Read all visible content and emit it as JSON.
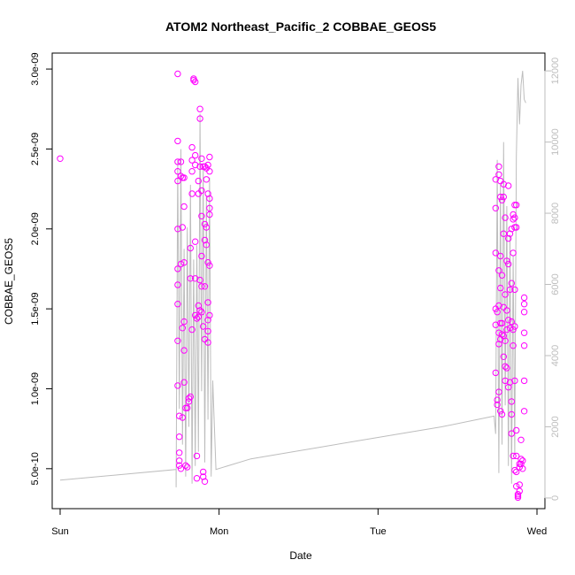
{
  "chart_data": {
    "type": "scatter",
    "title": "ATOM2 Northeast_Pacific_2 COBBAE_GEOS5",
    "xlabel": "Date",
    "ylabel": "COBBAE_GEOS5",
    "x_ticks": [
      "Sun",
      "Mon",
      "Tue",
      "Wed"
    ],
    "xlim_days": [
      -0.05,
      3.05
    ],
    "ylim": [
      2.5e-10,
      3.1e-09
    ],
    "y_ticks": [
      5e-10,
      1e-09,
      1.5e-09,
      2e-09,
      2.5e-09,
      3e-09
    ],
    "y_tick_labels": [
      "5.0e-10",
      "1.0e-09",
      "1.5e-09",
      "2.0e-09",
      "2.5e-09",
      "3.0e-09"
    ],
    "y2lim": [
      -300,
      12500
    ],
    "y2_ticks": [
      0,
      2000,
      4000,
      6000,
      8000,
      10000,
      12000
    ],
    "y2_tick_labels": [
      "0",
      "2000",
      "4000",
      "6000",
      "8000",
      "10000",
      "12000"
    ],
    "grid": false,
    "series": [
      {
        "marker": "open-circle",
        "color": "#ff00ff",
        "points": [
          {
            "x": 0.0,
            "y": 2.44e-09
          },
          {
            "x": 0.74,
            "y": 2.97e-09
          },
          {
            "x": 0.74,
            "y": 2.55e-09
          },
          {
            "x": 0.74,
            "y": 2.42e-09
          },
          {
            "x": 0.74,
            "y": 2.36e-09
          },
          {
            "x": 0.74,
            "y": 2.3e-09
          },
          {
            "x": 0.74,
            "y": 2e-09
          },
          {
            "x": 0.74,
            "y": 1.75e-09
          },
          {
            "x": 0.74,
            "y": 1.65e-09
          },
          {
            "x": 0.74,
            "y": 1.53e-09
          },
          {
            "x": 0.74,
            "y": 1.3e-09
          },
          {
            "x": 0.74,
            "y": 1.02e-09
          },
          {
            "x": 0.75,
            "y": 8.3e-10
          },
          {
            "x": 0.75,
            "y": 7e-10
          },
          {
            "x": 0.75,
            "y": 6e-10
          },
          {
            "x": 0.75,
            "y": 5.5e-10
          },
          {
            "x": 0.75,
            "y": 5.2e-10
          },
          {
            "x": 0.76,
            "y": 5e-10
          },
          {
            "x": 0.76,
            "y": 2.33e-09
          },
          {
            "x": 0.76,
            "y": 2.42e-09
          },
          {
            "x": 0.76,
            "y": 1.78e-09
          },
          {
            "x": 0.77,
            "y": 2.32e-09
          },
          {
            "x": 0.77,
            "y": 2.01e-09
          },
          {
            "x": 0.77,
            "y": 1.38e-09
          },
          {
            "x": 0.77,
            "y": 8.2e-10
          },
          {
            "x": 0.78,
            "y": 2.32e-09
          },
          {
            "x": 0.78,
            "y": 2.14e-09
          },
          {
            "x": 0.78,
            "y": 1.79e-09
          },
          {
            "x": 0.78,
            "y": 1.42e-09
          },
          {
            "x": 0.78,
            "y": 1.24e-09
          },
          {
            "x": 0.78,
            "y": 1.04e-09
          },
          {
            "x": 0.79,
            "y": 8.8e-10
          },
          {
            "x": 0.79,
            "y": 5.2e-10
          },
          {
            "x": 0.8,
            "y": 8.8e-10
          },
          {
            "x": 0.8,
            "y": 5.1e-10
          },
          {
            "x": 0.81,
            "y": 9.2e-10
          },
          {
            "x": 0.81,
            "y": 9.4e-10
          },
          {
            "x": 0.82,
            "y": 9.5e-10
          },
          {
            "x": 0.82,
            "y": 1.88e-09
          },
          {
            "x": 0.82,
            "y": 1.69e-09
          },
          {
            "x": 0.83,
            "y": 2.22e-09
          },
          {
            "x": 0.83,
            "y": 2.36e-09
          },
          {
            "x": 0.83,
            "y": 2.43e-09
          },
          {
            "x": 0.83,
            "y": 2.51e-09
          },
          {
            "x": 0.83,
            "y": 1.37e-09
          },
          {
            "x": 0.84,
            "y": 2.94e-09
          },
          {
            "x": 0.84,
            "y": 2.93e-09
          },
          {
            "x": 0.85,
            "y": 2.92e-09
          },
          {
            "x": 0.85,
            "y": 2.46e-09
          },
          {
            "x": 0.85,
            "y": 2.4e-09
          },
          {
            "x": 0.85,
            "y": 1.92e-09
          },
          {
            "x": 0.85,
            "y": 1.69e-09
          },
          {
            "x": 0.85,
            "y": 1.46e-09
          },
          {
            "x": 0.86,
            "y": 1.44e-09
          },
          {
            "x": 0.86,
            "y": 5.8e-10
          },
          {
            "x": 0.86,
            "y": 4.4e-10
          },
          {
            "x": 0.87,
            "y": 2.3e-09
          },
          {
            "x": 0.87,
            "y": 2.22e-09
          },
          {
            "x": 0.87,
            "y": 1.52e-09
          },
          {
            "x": 0.87,
            "y": 1.45e-09
          },
          {
            "x": 0.88,
            "y": 2.75e-09
          },
          {
            "x": 0.88,
            "y": 2.69e-09
          },
          {
            "x": 0.88,
            "y": 2.39e-09
          },
          {
            "x": 0.88,
            "y": 1.68e-09
          },
          {
            "x": 0.88,
            "y": 1.49e-09
          },
          {
            "x": 0.89,
            "y": 2.44e-09
          },
          {
            "x": 0.89,
            "y": 2.24e-09
          },
          {
            "x": 0.89,
            "y": 2.08e-09
          },
          {
            "x": 0.89,
            "y": 1.83e-09
          },
          {
            "x": 0.89,
            "y": 1.64e-09
          },
          {
            "x": 0.89,
            "y": 1.48e-09
          },
          {
            "x": 0.9,
            "y": 2.39e-09
          },
          {
            "x": 0.9,
            "y": 1.39e-09
          },
          {
            "x": 0.9,
            "y": 4.8e-10
          },
          {
            "x": 0.9,
            "y": 4.5e-10
          },
          {
            "x": 0.91,
            "y": 2.39e-09
          },
          {
            "x": 0.91,
            "y": 2.03e-09
          },
          {
            "x": 0.91,
            "y": 1.93e-09
          },
          {
            "x": 0.91,
            "y": 1.64e-09
          },
          {
            "x": 0.91,
            "y": 1.31e-09
          },
          {
            "x": 0.91,
            "y": 4.2e-10
          },
          {
            "x": 0.92,
            "y": 2.38e-09
          },
          {
            "x": 0.92,
            "y": 2.31e-09
          },
          {
            "x": 0.92,
            "y": 2.01e-09
          },
          {
            "x": 0.92,
            "y": 1.9e-09
          },
          {
            "x": 0.93,
            "y": 2.4e-09
          },
          {
            "x": 0.93,
            "y": 2.22e-09
          },
          {
            "x": 0.93,
            "y": 1.79e-09
          },
          {
            "x": 0.93,
            "y": 1.54e-09
          },
          {
            "x": 0.93,
            "y": 1.43e-09
          },
          {
            "x": 0.93,
            "y": 1.36e-09
          },
          {
            "x": 0.93,
            "y": 1.29e-09
          },
          {
            "x": 0.94,
            "y": 2.45e-09
          },
          {
            "x": 0.94,
            "y": 2.36e-09
          },
          {
            "x": 0.94,
            "y": 2.19e-09
          },
          {
            "x": 0.94,
            "y": 2.13e-09
          },
          {
            "x": 0.94,
            "y": 2.09e-09
          },
          {
            "x": 0.94,
            "y": 1.77e-09
          },
          {
            "x": 0.94,
            "y": 1.46e-09
          },
          {
            "x": 2.74,
            "y": 2.31e-09
          },
          {
            "x": 2.74,
            "y": 2.13e-09
          },
          {
            "x": 2.74,
            "y": 1.85e-09
          },
          {
            "x": 2.74,
            "y": 1.5e-09
          },
          {
            "x": 2.74,
            "y": 1.4e-09
          },
          {
            "x": 2.74,
            "y": 1.1e-09
          },
          {
            "x": 2.75,
            "y": 9.3e-10
          },
          {
            "x": 2.75,
            "y": 9e-10
          },
          {
            "x": 2.75,
            "y": 1.48e-09
          },
          {
            "x": 2.76,
            "y": 2.39e-09
          },
          {
            "x": 2.76,
            "y": 2.34e-09
          },
          {
            "x": 2.76,
            "y": 1.74e-09
          },
          {
            "x": 2.76,
            "y": 1.52e-09
          },
          {
            "x": 2.76,
            "y": 1.35e-09
          },
          {
            "x": 2.76,
            "y": 1.28e-09
          },
          {
            "x": 2.76,
            "y": 9.8e-10
          },
          {
            "x": 2.77,
            "y": 2.3e-09
          },
          {
            "x": 2.77,
            "y": 2.2e-09
          },
          {
            "x": 2.77,
            "y": 1.83e-09
          },
          {
            "x": 2.77,
            "y": 1.63e-09
          },
          {
            "x": 2.77,
            "y": 1.41e-09
          },
          {
            "x": 2.77,
            "y": 1.31e-09
          },
          {
            "x": 2.77,
            "y": 8.6e-10
          },
          {
            "x": 2.78,
            "y": 2.18e-09
          },
          {
            "x": 2.78,
            "y": 1.71e-09
          },
          {
            "x": 2.78,
            "y": 1.41e-09
          },
          {
            "x": 2.78,
            "y": 1.34e-09
          },
          {
            "x": 2.78,
            "y": 8.4e-10
          },
          {
            "x": 2.79,
            "y": 2.28e-09
          },
          {
            "x": 2.79,
            "y": 2.2e-09
          },
          {
            "x": 2.79,
            "y": 1.97e-09
          },
          {
            "x": 2.79,
            "y": 1.51e-09
          },
          {
            "x": 2.79,
            "y": 1.33e-09
          },
          {
            "x": 2.79,
            "y": 1.2e-09
          },
          {
            "x": 2.8,
            "y": 2.07e-09
          },
          {
            "x": 2.8,
            "y": 1.59e-09
          },
          {
            "x": 2.8,
            "y": 1.3e-09
          },
          {
            "x": 2.8,
            "y": 1.14e-09
          },
          {
            "x": 2.8,
            "y": 1.05e-09
          },
          {
            "x": 2.81,
            "y": 1.8e-09
          },
          {
            "x": 2.81,
            "y": 1.49e-09
          },
          {
            "x": 2.81,
            "y": 1.37e-09
          },
          {
            "x": 2.81,
            "y": 1.13e-09
          },
          {
            "x": 2.82,
            "y": 2.27e-09
          },
          {
            "x": 2.82,
            "y": 1.94e-09
          },
          {
            "x": 2.82,
            "y": 1.78e-09
          },
          {
            "x": 2.82,
            "y": 1.43e-09
          },
          {
            "x": 2.82,
            "y": 1.01e-09
          },
          {
            "x": 2.83,
            "y": 1.97e-09
          },
          {
            "x": 2.83,
            "y": 1.62e-09
          },
          {
            "x": 2.83,
            "y": 1.38e-09
          },
          {
            "x": 2.83,
            "y": 1.04e-09
          },
          {
            "x": 2.84,
            "y": 2e-09
          },
          {
            "x": 2.84,
            "y": 1.66e-09
          },
          {
            "x": 2.84,
            "y": 1.42e-09
          },
          {
            "x": 2.84,
            "y": 9.2e-10
          },
          {
            "x": 2.84,
            "y": 8.4e-10
          },
          {
            "x": 2.84,
            "y": 7.2e-10
          },
          {
            "x": 2.85,
            "y": 2.09e-09
          },
          {
            "x": 2.85,
            "y": 2.06e-09
          },
          {
            "x": 2.85,
            "y": 1.85e-09
          },
          {
            "x": 2.85,
            "y": 1.37e-09
          },
          {
            "x": 2.85,
            "y": 1.27e-09
          },
          {
            "x": 2.85,
            "y": 5.8e-10
          },
          {
            "x": 2.86,
            "y": 2.15e-09
          },
          {
            "x": 2.86,
            "y": 2.07e-09
          },
          {
            "x": 2.86,
            "y": 2.01e-09
          },
          {
            "x": 2.86,
            "y": 1.62e-09
          },
          {
            "x": 2.86,
            "y": 1.39e-09
          },
          {
            "x": 2.86,
            "y": 1.05e-09
          },
          {
            "x": 2.86,
            "y": 4.9e-10
          },
          {
            "x": 2.87,
            "y": 2.15e-09
          },
          {
            "x": 2.87,
            "y": 2.01e-09
          },
          {
            "x": 2.87,
            "y": 7.4e-10
          },
          {
            "x": 2.87,
            "y": 5.8e-10
          },
          {
            "x": 2.87,
            "y": 4.8e-10
          },
          {
            "x": 2.87,
            "y": 3.9e-10
          },
          {
            "x": 2.88,
            "y": 3.4e-10
          },
          {
            "x": 2.88,
            "y": 3.3e-10
          },
          {
            "x": 2.88,
            "y": 3.2e-10
          },
          {
            "x": 2.89,
            "y": 3.6e-10
          },
          {
            "x": 2.89,
            "y": 4e-10
          },
          {
            "x": 2.89,
            "y": 5.1e-10
          },
          {
            "x": 2.89,
            "y": 5.3e-10
          },
          {
            "x": 2.9,
            "y": 5.6e-10
          },
          {
            "x": 2.9,
            "y": 5.3e-10
          },
          {
            "x": 2.9,
            "y": 6.8e-10
          },
          {
            "x": 2.91,
            "y": 5e-10
          },
          {
            "x": 2.91,
            "y": 5.5e-10
          },
          {
            "x": 2.92,
            "y": 1.57e-09
          },
          {
            "x": 2.92,
            "y": 1.53e-09
          },
          {
            "x": 2.92,
            "y": 1.48e-09
          },
          {
            "x": 2.92,
            "y": 1.35e-09
          },
          {
            "x": 2.92,
            "y": 1.27e-09
          },
          {
            "x": 2.92,
            "y": 1.05e-09
          },
          {
            "x": 2.92,
            "y": 8.6e-10
          }
        ]
      },
      {
        "type": "line",
        "axis": "right",
        "color": "#bdbdbd",
        "points": [
          {
            "x": 0.0,
            "y": 500
          },
          {
            "x": 0.73,
            "y": 800
          },
          {
            "x": 0.73,
            "y": 300
          },
          {
            "x": 0.74,
            "y": 9500
          },
          {
            "x": 0.75,
            "y": 2500
          },
          {
            "x": 0.76,
            "y": 9800
          },
          {
            "x": 0.77,
            "y": 1500
          },
          {
            "x": 0.78,
            "y": 7000
          },
          {
            "x": 0.79,
            "y": 600
          },
          {
            "x": 0.8,
            "y": 7600
          },
          {
            "x": 0.81,
            "y": 2000
          },
          {
            "x": 0.82,
            "y": 8800
          },
          {
            "x": 0.83,
            "y": 400
          },
          {
            "x": 0.84,
            "y": 6700
          },
          {
            "x": 0.85,
            "y": 900
          },
          {
            "x": 0.86,
            "y": 7100
          },
          {
            "x": 0.87,
            "y": 1300
          },
          {
            "x": 0.88,
            "y": 10800
          },
          {
            "x": 0.89,
            "y": 3000
          },
          {
            "x": 0.9,
            "y": 9300
          },
          {
            "x": 0.91,
            "y": 1000
          },
          {
            "x": 0.92,
            "y": 8500
          },
          {
            "x": 0.93,
            "y": 2200
          },
          {
            "x": 0.94,
            "y": 9000
          },
          {
            "x": 0.95,
            "y": 600
          },
          {
            "x": 0.96,
            "y": 3300
          },
          {
            "x": 0.98,
            "y": 800
          },
          {
            "x": 1.2,
            "y": 1100
          },
          {
            "x": 1.6,
            "y": 1400
          },
          {
            "x": 2.0,
            "y": 1700
          },
          {
            "x": 2.4,
            "y": 2000
          },
          {
            "x": 2.73,
            "y": 2300
          },
          {
            "x": 2.74,
            "y": 1800
          },
          {
            "x": 2.75,
            "y": 9500
          },
          {
            "x": 2.76,
            "y": 700
          },
          {
            "x": 2.77,
            "y": 8800
          },
          {
            "x": 2.78,
            "y": 1500
          },
          {
            "x": 2.79,
            "y": 10000
          },
          {
            "x": 2.8,
            "y": 2600
          },
          {
            "x": 2.81,
            "y": 8200
          },
          {
            "x": 2.82,
            "y": 900
          },
          {
            "x": 2.83,
            "y": 7400
          },
          {
            "x": 2.84,
            "y": 400
          },
          {
            "x": 2.85,
            "y": 6800
          },
          {
            "x": 2.86,
            "y": 1200
          },
          {
            "x": 2.87,
            "y": 9600
          },
          {
            "x": 2.88,
            "y": 11800
          },
          {
            "x": 2.89,
            "y": 10500
          },
          {
            "x": 2.9,
            "y": 11600
          },
          {
            "x": 2.91,
            "y": 12000
          },
          {
            "x": 2.92,
            "y": 11200
          },
          {
            "x": 2.93,
            "y": 11100
          }
        ]
      }
    ]
  }
}
